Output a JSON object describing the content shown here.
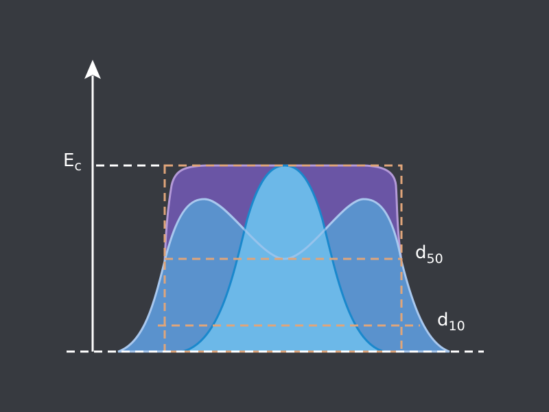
{
  "labels": {
    "ec": {
      "main": "E",
      "sub": "c"
    },
    "d50": {
      "main": "d",
      "sub": "50"
    },
    "d10": {
      "main": "d",
      "sub": "10"
    }
  }
}
